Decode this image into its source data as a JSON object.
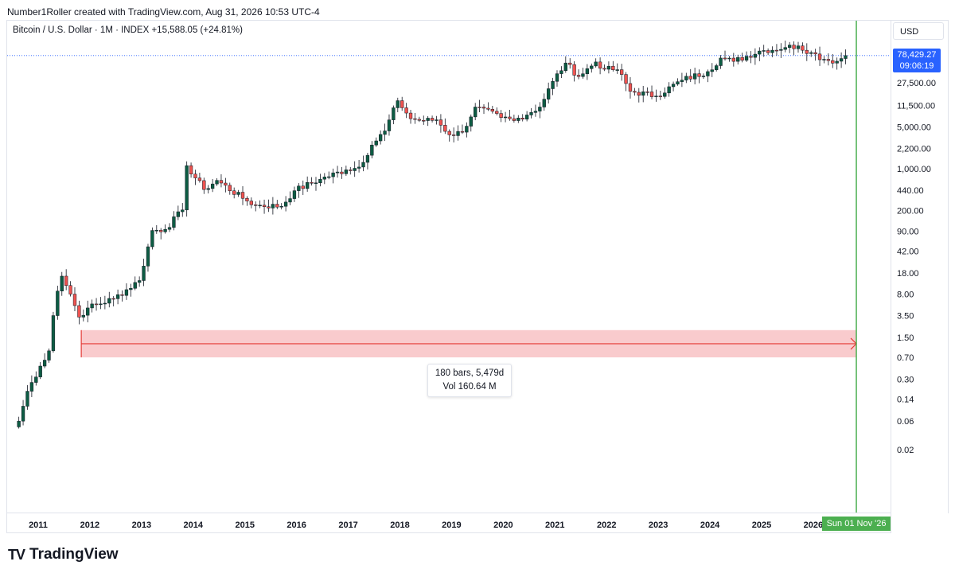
{
  "header": {
    "author_line": "Number1Roller created with TradingView.com, Aug 31, 2026 10:53 UTC-4"
  },
  "symbol": {
    "name": "Bitcoin / U.S. Dollar · 1M · INDEX",
    "change": "+15,588.05 (+24.81%)"
  },
  "price_scale": {
    "currency": "USD",
    "current_price": "78,429.27",
    "countdown": "09:06:19"
  },
  "measure": {
    "bars_label": "180 bars, 5,479d",
    "volume_label": "Vol 160.64 M"
  },
  "crosshair_date": "Sun 01 Nov '26",
  "brand": {
    "name": "TradingView",
    "mark": "TV"
  },
  "colors": {
    "up": "#26a69a",
    "up_dark": "#0d5c43",
    "down": "#ef5350",
    "measure_fill": "#f8c5c8",
    "measure_line": "#e53935",
    "vline": "#4caf50",
    "price_line": "#2962ff"
  },
  "chart_data": {
    "type": "candlestick",
    "scale": "log",
    "interval": "1M",
    "y_ticks": [
      {
        "label": "27,500.00",
        "value": 27500
      },
      {
        "label": "11,500.00",
        "value": 11500
      },
      {
        "label": "5,000.00",
        "value": 5000
      },
      {
        "label": "2,200.00",
        "value": 2200
      },
      {
        "label": "1,000.00",
        "value": 1000
      },
      {
        "label": "440.00",
        "value": 440
      },
      {
        "label": "200.00",
        "value": 200
      },
      {
        "label": "90.00",
        "value": 90
      },
      {
        "label": "42.00",
        "value": 42
      },
      {
        "label": "18.00",
        "value": 18
      },
      {
        "label": "8.00",
        "value": 8
      },
      {
        "label": "3.50",
        "value": 3.5
      },
      {
        "label": "1.50",
        "value": 1.5
      },
      {
        "label": "0.70",
        "value": 0.7
      },
      {
        "label": "0.30",
        "value": 0.3
      },
      {
        "label": "0.14",
        "value": 0.14
      },
      {
        "label": "0.06",
        "value": 0.06
      },
      {
        "label": "0.02",
        "value": 0.02
      }
    ],
    "x_ticks": [
      "2011",
      "2012",
      "2013",
      "2014",
      "2015",
      "2016",
      "2017",
      "2018",
      "2019",
      "2020",
      "2021",
      "2022",
      "2023",
      "2024",
      "2025",
      "2026"
    ],
    "monthly_close": [
      {
        "date": "2010-08",
        "value": 0.06
      },
      {
        "date": "2010-10",
        "value": 0.19
      },
      {
        "date": "2011-01",
        "value": 0.5
      },
      {
        "date": "2011-03",
        "value": 0.9
      },
      {
        "date": "2011-04",
        "value": 3.5
      },
      {
        "date": "2011-05",
        "value": 9.0
      },
      {
        "date": "2011-06",
        "value": 16.0
      },
      {
        "date": "2011-08",
        "value": 8.0
      },
      {
        "date": "2011-10",
        "value": 3.3
      },
      {
        "date": "2011-12",
        "value": 4.7
      },
      {
        "date": "2012-06",
        "value": 6.7
      },
      {
        "date": "2012-12",
        "value": 13.5
      },
      {
        "date": "2013-03",
        "value": 93
      },
      {
        "date": "2013-06",
        "value": 97
      },
      {
        "date": "2013-10",
        "value": 205
      },
      {
        "date": "2013-11",
        "value": 1130
      },
      {
        "date": "2014-03",
        "value": 450
      },
      {
        "date": "2014-06",
        "value": 640
      },
      {
        "date": "2014-12",
        "value": 320
      },
      {
        "date": "2015-03",
        "value": 245
      },
      {
        "date": "2015-09",
        "value": 236
      },
      {
        "date": "2015-12",
        "value": 430
      },
      {
        "date": "2016-06",
        "value": 670
      },
      {
        "date": "2016-12",
        "value": 960
      },
      {
        "date": "2017-03",
        "value": 1070
      },
      {
        "date": "2017-06",
        "value": 2500
      },
      {
        "date": "2017-09",
        "value": 4300
      },
      {
        "date": "2017-12",
        "value": 13800
      },
      {
        "date": "2018-03",
        "value": 6900
      },
      {
        "date": "2018-06",
        "value": 6400
      },
      {
        "date": "2018-09",
        "value": 6600
      },
      {
        "date": "2018-12",
        "value": 3700
      },
      {
        "date": "2019-03",
        "value": 4100
      },
      {
        "date": "2019-06",
        "value": 10800
      },
      {
        "date": "2019-12",
        "value": 7200
      },
      {
        "date": "2020-03",
        "value": 6400
      },
      {
        "date": "2020-09",
        "value": 10800
      },
      {
        "date": "2020-12",
        "value": 29000
      },
      {
        "date": "2021-03",
        "value": 58900
      },
      {
        "date": "2021-06",
        "value": 35000
      },
      {
        "date": "2021-10",
        "value": 61300
      },
      {
        "date": "2021-12",
        "value": 46300
      },
      {
        "date": "2022-03",
        "value": 45500
      },
      {
        "date": "2022-06",
        "value": 19800
      },
      {
        "date": "2022-12",
        "value": 16500
      },
      {
        "date": "2023-06",
        "value": 30500
      },
      {
        "date": "2023-12",
        "value": 42300
      },
      {
        "date": "2024-03",
        "value": 71300
      },
      {
        "date": "2024-06",
        "value": 62700
      },
      {
        "date": "2024-12",
        "value": 93400
      },
      {
        "date": "2025-06",
        "value": 107000
      },
      {
        "date": "2025-09",
        "value": 114000
      },
      {
        "date": "2025-12",
        "value": 88000
      },
      {
        "date": "2026-03",
        "value": 68000
      },
      {
        "date": "2026-06",
        "value": 63000
      },
      {
        "date": "2026-08",
        "value": 78429.27
      }
    ],
    "range_measure": {
      "from": "2011-11",
      "to": "2026-11",
      "bars": 180,
      "days": 5479,
      "volume": "160.64 M",
      "price_band_low": 0.7,
      "price_band_high": 2.0
    },
    "vertical_marker_date": "2026-11-01",
    "current_price": 78429.27
  }
}
